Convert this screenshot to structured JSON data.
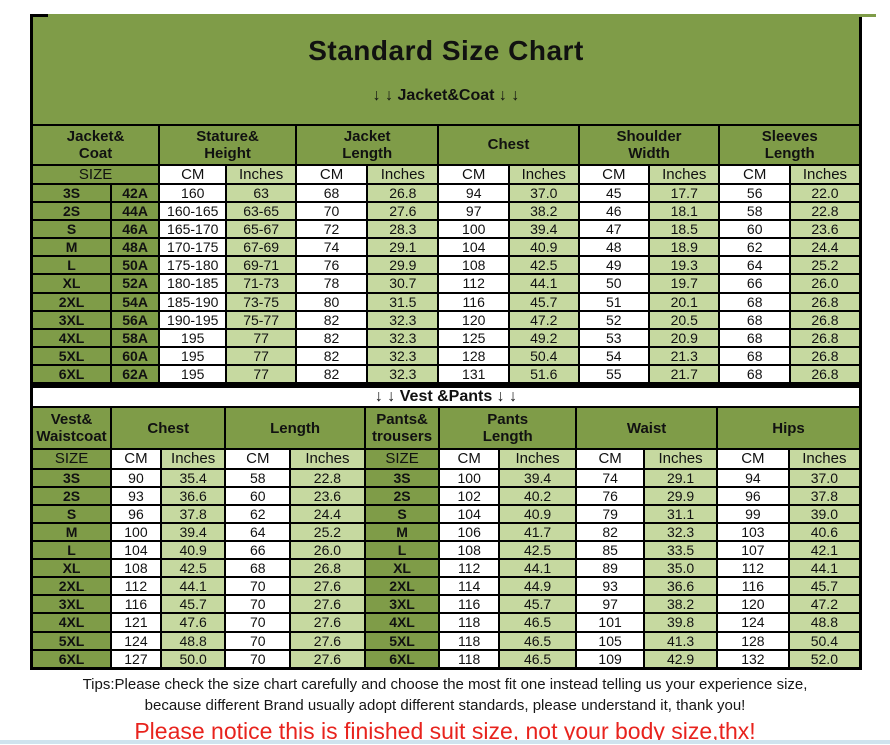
{
  "page": {
    "title": "Standard Size Chart",
    "tips_line1": "Tips:Please check the size chart carefully and choose the most fit one instead telling us your experience size,",
    "tips_line2": "because different Brand usually adopt different standards, please understand it, thank you!",
    "notice_red": "Please notice this is finished suit size, not your body size,thx!"
  },
  "colors": {
    "header_green": "#7f9c48",
    "light_green": "#c6d9a0",
    "cell_white": "#ffffff",
    "border_black": "#000000",
    "notice_red": "#e8231d",
    "bottom_blue": "#cfe3ee"
  },
  "jacket_table": {
    "divider_label": "↓ ↓  Jacket&Coat ↓ ↓",
    "groups": [
      {
        "label": "Jacket&\nCoat",
        "span": 2
      },
      {
        "label": "Stature&\nHeight",
        "span": 2
      },
      {
        "label": "Jacket\nLength",
        "span": 2
      },
      {
        "label": "Chest",
        "span": 2
      },
      {
        "label": "Shoulder\nWidth",
        "span": 2
      },
      {
        "label": "Sleeves\nLength",
        "span": 2
      }
    ],
    "units": [
      {
        "label": "SIZE",
        "span": 2,
        "type": "size"
      },
      {
        "label": "CM",
        "span": 1,
        "type": "cm"
      },
      {
        "label": "Inches",
        "span": 1,
        "type": "in"
      },
      {
        "label": "CM",
        "span": 1,
        "type": "cm"
      },
      {
        "label": "Inches",
        "span": 1,
        "type": "in"
      },
      {
        "label": "CM",
        "span": 1,
        "type": "cm"
      },
      {
        "label": "Inches",
        "span": 1,
        "type": "in"
      },
      {
        "label": "CM",
        "span": 1,
        "type": "cm"
      },
      {
        "label": "Inches",
        "span": 1,
        "type": "in"
      },
      {
        "label": "CM",
        "span": 1,
        "type": "cm"
      },
      {
        "label": "Inches",
        "span": 1,
        "type": "in"
      }
    ],
    "rows": [
      [
        "3S",
        "42A",
        "160",
        "63",
        "68",
        "26.8",
        "94",
        "37.0",
        "45",
        "17.7",
        "56",
        "22.0"
      ],
      [
        "2S",
        "44A",
        "160-165",
        "63-65",
        "70",
        "27.6",
        "97",
        "38.2",
        "46",
        "18.1",
        "58",
        "22.8"
      ],
      [
        "S",
        "46A",
        "165-170",
        "65-67",
        "72",
        "28.3",
        "100",
        "39.4",
        "47",
        "18.5",
        "60",
        "23.6"
      ],
      [
        "M",
        "48A",
        "170-175",
        "67-69",
        "74",
        "29.1",
        "104",
        "40.9",
        "48",
        "18.9",
        "62",
        "24.4"
      ],
      [
        "L",
        "50A",
        "175-180",
        "69-71",
        "76",
        "29.9",
        "108",
        "42.5",
        "49",
        "19.3",
        "64",
        "25.2"
      ],
      [
        "XL",
        "52A",
        "180-185",
        "71-73",
        "78",
        "30.7",
        "112",
        "44.1",
        "50",
        "19.7",
        "66",
        "26.0"
      ],
      [
        "2XL",
        "54A",
        "185-190",
        "73-75",
        "80",
        "31.5",
        "116",
        "45.7",
        "51",
        "20.1",
        "68",
        "26.8"
      ],
      [
        "3XL",
        "56A",
        "190-195",
        "75-77",
        "82",
        "32.3",
        "120",
        "47.2",
        "52",
        "20.5",
        "68",
        "26.8"
      ],
      [
        "4XL",
        "58A",
        "195",
        "77",
        "82",
        "32.3",
        "125",
        "49.2",
        "53",
        "20.9",
        "68",
        "26.8"
      ],
      [
        "5XL",
        "60A",
        "195",
        "77",
        "82",
        "32.3",
        "128",
        "50.4",
        "54",
        "21.3",
        "68",
        "26.8"
      ],
      [
        "6XL",
        "62A",
        "195",
        "77",
        "82",
        "32.3",
        "131",
        "51.6",
        "55",
        "21.7",
        "68",
        "26.8"
      ]
    ]
  },
  "vest_table": {
    "divider_label": "↓ ↓  Vest &Pants ↓ ↓",
    "groups": [
      {
        "label": "Vest&\nWaistcoat",
        "span": 1
      },
      {
        "label": "Chest",
        "span": 2
      },
      {
        "label": "Length",
        "span": 2
      },
      {
        "label": "Pants&\ntrousers",
        "span": 1
      },
      {
        "label": "Pants\nLength",
        "span": 2
      },
      {
        "label": "Waist",
        "span": 2
      },
      {
        "label": "Hips",
        "span": 2
      }
    ],
    "units": [
      {
        "label": "SIZE",
        "span": 1,
        "type": "size"
      },
      {
        "label": "CM",
        "span": 1,
        "type": "cm"
      },
      {
        "label": "Inches",
        "span": 1,
        "type": "in"
      },
      {
        "label": "CM",
        "span": 1,
        "type": "cm"
      },
      {
        "label": "Inches",
        "span": 1,
        "type": "in"
      },
      {
        "label": "SIZE",
        "span": 1,
        "type": "size"
      },
      {
        "label": "CM",
        "span": 1,
        "type": "cm"
      },
      {
        "label": "Inches",
        "span": 1,
        "type": "in"
      },
      {
        "label": "CM",
        "span": 1,
        "type": "cm"
      },
      {
        "label": "Inches",
        "span": 1,
        "type": "in"
      },
      {
        "label": "CM",
        "span": 1,
        "type": "cm"
      },
      {
        "label": "Inches",
        "span": 1,
        "type": "in"
      }
    ],
    "rows": [
      [
        "3S",
        "90",
        "35.4",
        "58",
        "22.8",
        "3S",
        "100",
        "39.4",
        "74",
        "29.1",
        "94",
        "37.0"
      ],
      [
        "2S",
        "93",
        "36.6",
        "60",
        "23.6",
        "2S",
        "102",
        "40.2",
        "76",
        "29.9",
        "96",
        "37.8"
      ],
      [
        "S",
        "96",
        "37.8",
        "62",
        "24.4",
        "S",
        "104",
        "40.9",
        "79",
        "31.1",
        "99",
        "39.0"
      ],
      [
        "M",
        "100",
        "39.4",
        "64",
        "25.2",
        "M",
        "106",
        "41.7",
        "82",
        "32.3",
        "103",
        "40.6"
      ],
      [
        "L",
        "104",
        "40.9",
        "66",
        "26.0",
        "L",
        "108",
        "42.5",
        "85",
        "33.5",
        "107",
        "42.1"
      ],
      [
        "XL",
        "108",
        "42.5",
        "68",
        "26.8",
        "XL",
        "112",
        "44.1",
        "89",
        "35.0",
        "112",
        "44.1"
      ],
      [
        "2XL",
        "112",
        "44.1",
        "70",
        "27.6",
        "2XL",
        "114",
        "44.9",
        "93",
        "36.6",
        "116",
        "45.7"
      ],
      [
        "3XL",
        "116",
        "45.7",
        "70",
        "27.6",
        "3XL",
        "116",
        "45.7",
        "97",
        "38.2",
        "120",
        "47.2"
      ],
      [
        "4XL",
        "121",
        "47.6",
        "70",
        "27.6",
        "4XL",
        "118",
        "46.5",
        "101",
        "39.8",
        "124",
        "48.8"
      ],
      [
        "5XL",
        "124",
        "48.8",
        "70",
        "27.6",
        "5XL",
        "118",
        "46.5",
        "105",
        "41.3",
        "128",
        "50.4"
      ],
      [
        "6XL",
        "127",
        "50.0",
        "70",
        "27.6",
        "6XL",
        "118",
        "46.5",
        "109",
        "42.9",
        "132",
        "52.0"
      ]
    ]
  }
}
